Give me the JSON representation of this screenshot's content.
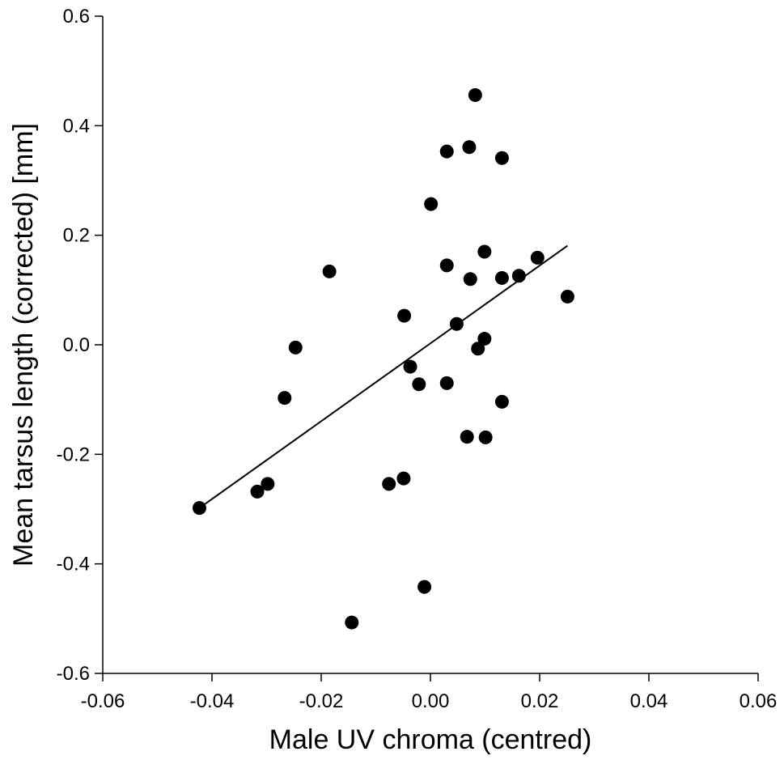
{
  "chart_data": {
    "type": "scatter",
    "title": "",
    "xlabel": "Male UV chroma (centred)",
    "ylabel": "Mean tarsus length (corrected) [mm]",
    "xlim": [
      -0.06,
      0.06
    ],
    "ylim": [
      -0.6,
      0.6
    ],
    "x_ticks": [
      -0.06,
      -0.04,
      -0.02,
      0.0,
      0.02,
      0.04,
      0.06
    ],
    "x_tick_labels": [
      "-0.06",
      "-0.04",
      "-0.02",
      "0.00",
      "0.02",
      "0.04",
      "0.06"
    ],
    "y_ticks": [
      -0.6,
      -0.4,
      -0.2,
      0.0,
      0.2,
      0.4,
      0.6
    ],
    "y_tick_labels": [
      "-0.6",
      "-0.4",
      "-0.2",
      "0.0",
      "0.2",
      "0.4",
      "0.6"
    ],
    "grid": false,
    "legend": "none",
    "marker_color": "#000000",
    "points": [
      {
        "x": -0.0423,
        "y": -0.298
      },
      {
        "x": -0.0317,
        "y": -0.268
      },
      {
        "x": -0.0298,
        "y": -0.254
      },
      {
        "x": -0.0267,
        "y": -0.097
      },
      {
        "x": -0.0247,
        "y": -0.005
      },
      {
        "x": -0.0185,
        "y": 0.134
      },
      {
        "x": -0.0144,
        "y": -0.507
      },
      {
        "x": -0.0076,
        "y": -0.254
      },
      {
        "x": -0.0049,
        "y": -0.244
      },
      {
        "x": -0.0048,
        "y": 0.053
      },
      {
        "x": -0.0037,
        "y": -0.04
      },
      {
        "x": -0.0021,
        "y": -0.072
      },
      {
        "x": -0.0011,
        "y": -0.442
      },
      {
        "x": 0.0001,
        "y": 0.257
      },
      {
        "x": 0.003,
        "y": 0.353
      },
      {
        "x": 0.003,
        "y": 0.145
      },
      {
        "x": 0.003,
        "y": -0.07
      },
      {
        "x": 0.0048,
        "y": 0.038
      },
      {
        "x": 0.0067,
        "y": -0.168
      },
      {
        "x": 0.0071,
        "y": 0.361
      },
      {
        "x": 0.0073,
        "y": 0.12
      },
      {
        "x": 0.0082,
        "y": 0.456
      },
      {
        "x": 0.0087,
        "y": -0.007
      },
      {
        "x": 0.0099,
        "y": 0.17
      },
      {
        "x": 0.0099,
        "y": 0.011
      },
      {
        "x": 0.0101,
        "y": -0.169
      },
      {
        "x": 0.0131,
        "y": 0.341
      },
      {
        "x": 0.0131,
        "y": 0.122
      },
      {
        "x": 0.0131,
        "y": -0.104
      },
      {
        "x": 0.0162,
        "y": 0.126
      },
      {
        "x": 0.0196,
        "y": 0.159
      },
      {
        "x": 0.0251,
        "y": 0.088
      }
    ],
    "regression_line": {
      "x": [
        -0.0423,
        0.0251
      ],
      "y": [
        -0.298,
        0.181
      ]
    }
  }
}
